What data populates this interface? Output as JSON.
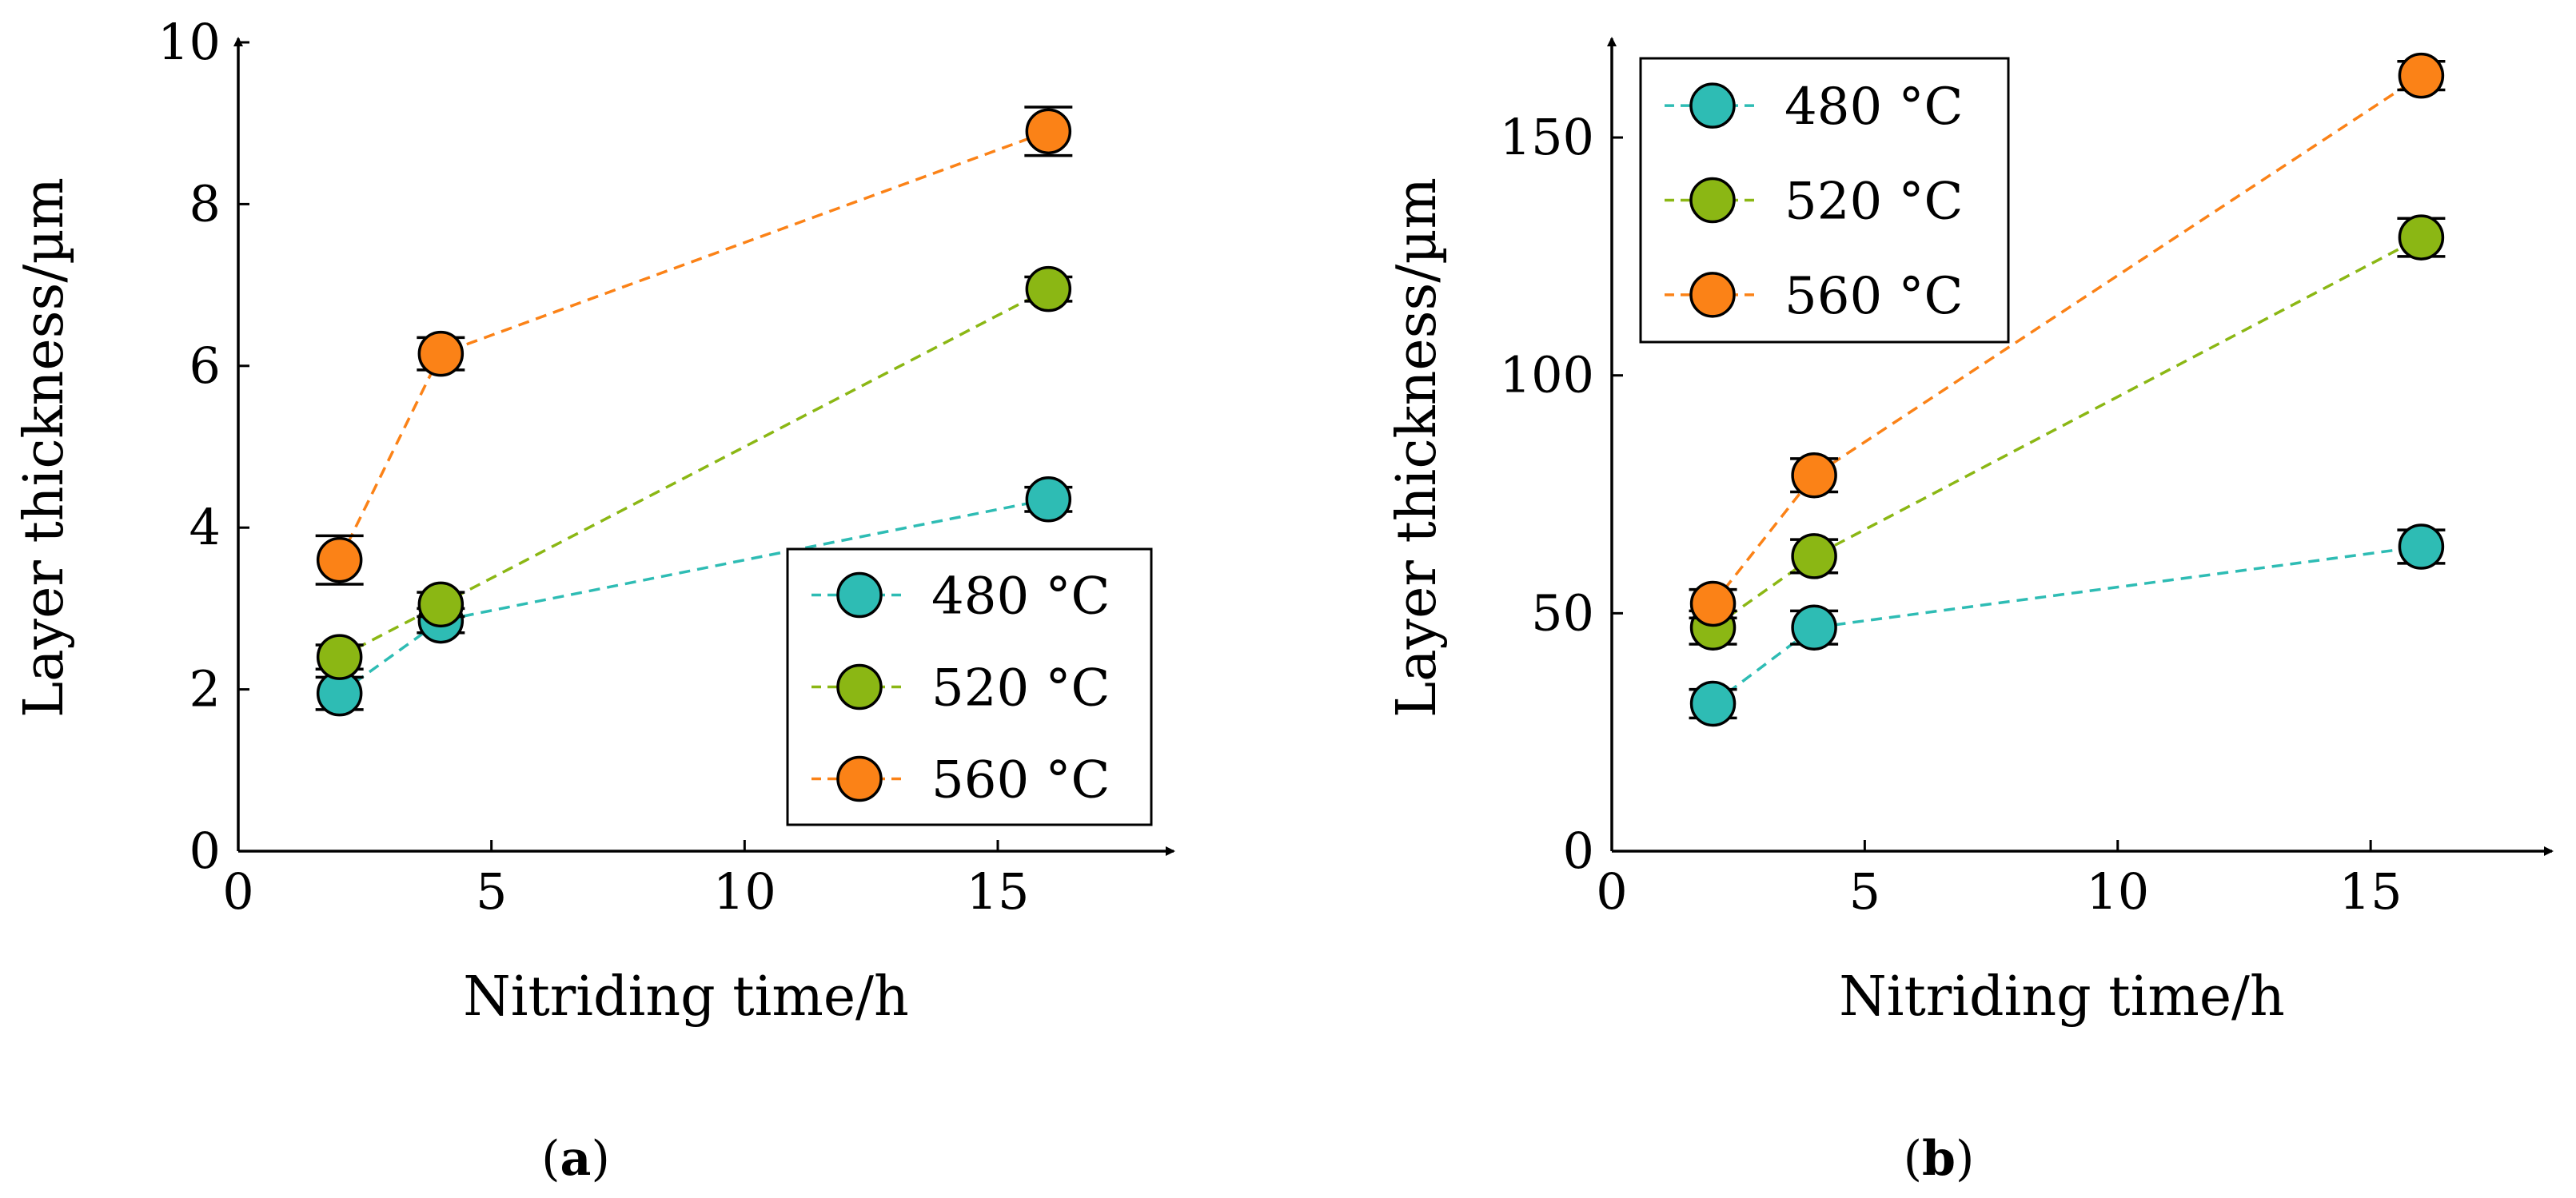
{
  "figure": {
    "captions": [
      {
        "open": "(",
        "letter": "a",
        "close": ")"
      },
      {
        "open": "(",
        "letter": "b",
        "close": ")"
      }
    ]
  },
  "colors": {
    "480": "#2ebcb4",
    "520": "#8bb714",
    "560": "#fb8217",
    "axis": "#000000"
  },
  "chart_data": [
    {
      "id": "a",
      "type": "scatter",
      "xlabel": "Nitriding time/h",
      "ylabel": "Layer thickness/µm",
      "xlim": [
        0,
        18
      ],
      "ylim": [
        0,
        10
      ],
      "xticks": [
        "0",
        "5",
        "10",
        "15"
      ],
      "xtick_values": [
        0,
        5,
        10,
        15
      ],
      "yticks": [
        "0",
        "2",
        "4",
        "6",
        "8",
        "10"
      ],
      "ytick_values": [
        0,
        2,
        4,
        6,
        8,
        10
      ],
      "legend_position": "bottom-right",
      "series": [
        {
          "name": "480 °C",
          "key": "480",
          "x": [
            2,
            4,
            16
          ],
          "y": [
            1.95,
            2.85,
            4.35
          ],
          "err": [
            0.2,
            0.15,
            0.15
          ]
        },
        {
          "name": "520 °C",
          "key": "520",
          "x": [
            2,
            4,
            16
          ],
          "y": [
            2.4,
            3.05,
            6.95
          ],
          "err": [
            0.15,
            0.15,
            0.15
          ]
        },
        {
          "name": "560 °C",
          "key": "560",
          "x": [
            2,
            4,
            16
          ],
          "y": [
            3.6,
            6.15,
            8.9
          ],
          "err": [
            0.3,
            0.2,
            0.3
          ]
        }
      ]
    },
    {
      "id": "b",
      "type": "scatter",
      "xlabel": "Nitriding time/h",
      "ylabel": "Layer thickness/µm",
      "xlim": [
        0,
        18
      ],
      "ylim": [
        0,
        170
      ],
      "xticks": [
        "0",
        "5",
        "10",
        "15"
      ],
      "xtick_values": [
        0,
        5,
        10,
        15
      ],
      "yticks": [
        "0",
        "50",
        "100",
        "150"
      ],
      "ytick_values": [
        0,
        50,
        100,
        150
      ],
      "legend_position": "top-left",
      "series": [
        {
          "name": "480 °C",
          "key": "480",
          "x": [
            2,
            4,
            16
          ],
          "y": [
            31,
            47,
            64
          ],
          "err": [
            3,
            3.5,
            3.5
          ]
        },
        {
          "name": "520 °C",
          "key": "520",
          "x": [
            2,
            4,
            16
          ],
          "y": [
            47,
            62,
            129
          ],
          "err": [
            3.5,
            3.5,
            4
          ]
        },
        {
          "name": "560 °C",
          "key": "560",
          "x": [
            2,
            4,
            16
          ],
          "y": [
            52,
            79,
            163
          ],
          "err": [
            3,
            3.5,
            3
          ]
        }
      ]
    }
  ]
}
